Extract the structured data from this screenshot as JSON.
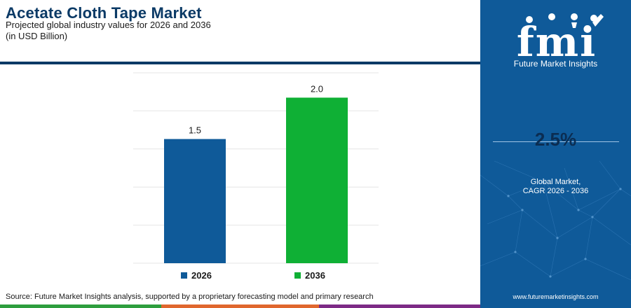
{
  "header": {
    "title": "Acetate Cloth Tape Market",
    "subtitle": "Projected global industry values for 2026 and 2036",
    "units": "(in USD Billion)"
  },
  "chart_data": {
    "type": "bar",
    "categories": [
      "2026",
      "2036"
    ],
    "values": [
      1.5,
      2.0
    ],
    "value_labels": [
      "1.5",
      "2.0"
    ],
    "colors": [
      "#0f5a99",
      "#0fb035"
    ],
    "ylim": [
      0,
      2.3
    ],
    "grid": true,
    "legend": "bottom",
    "title": "Acetate Cloth Tape Market",
    "xlabel": "",
    "ylabel": ""
  },
  "legend": {
    "items": [
      {
        "label": "2026",
        "color": "#0f5a99"
      },
      {
        "label": "2036",
        "color": "#0fb035"
      }
    ]
  },
  "footer": {
    "source": "Source: Future Market Insights analysis, supported by a proprietary forecasting model and primary research",
    "stripe_colors": [
      "#2e9e3e",
      "#e0672e",
      "#7d2a86"
    ]
  },
  "sidebar": {
    "logo_text": "fmi",
    "logo_caption": "Future Market Insights",
    "cagr_value": "2.5%",
    "cagr_label_line1": "Global Market,",
    "cagr_label_line2": "CAGR 2026 - 2036",
    "website": "www.futuremarketinsights.com",
    "background": "#0f5a99"
  }
}
